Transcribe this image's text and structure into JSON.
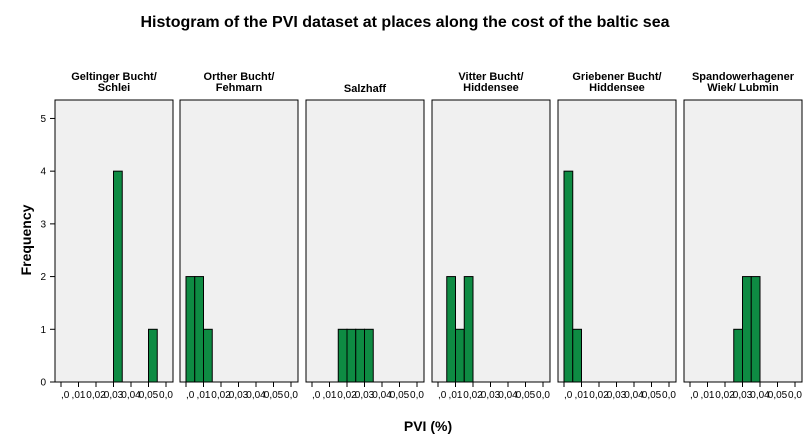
{
  "chart_data": {
    "type": "bar",
    "title": "Histogram of the PVI dataset at places along  the cost of the baltic sea",
    "xlabel": "PVI (%)",
    "ylabel": "Frequency",
    "ylim": [
      0,
      5
    ],
    "y_ticks": [
      "0",
      "1",
      "2",
      "3",
      "4",
      "5"
    ],
    "x_ticks": [
      ",0",
      ",01",
      "0,02",
      "0,03",
      "0,04",
      "0,05",
      "0,0"
    ],
    "bin_edges": [
      0,
      0.005,
      0.01,
      0.015,
      0.02,
      0.025,
      0.03,
      0.035,
      0.04,
      0.045,
      0.05,
      0.055,
      0.06
    ],
    "panels": [
      {
        "label_lines": [
          "Geltinger Bucht/",
          "Schlei"
        ],
        "counts": [
          0,
          0,
          0,
          0,
          0,
          0,
          4,
          0,
          0,
          0,
          1,
          0
        ]
      },
      {
        "label_lines": [
          "Orther Bucht/",
          "Fehmarn"
        ],
        "counts": [
          2,
          2,
          1,
          0,
          0,
          0,
          0,
          0,
          0,
          0,
          0,
          0
        ]
      },
      {
        "label_lines": [
          "Salzhaff"
        ],
        "counts": [
          0,
          0,
          0,
          1,
          1,
          1,
          1,
          0,
          0,
          0,
          0,
          0
        ]
      },
      {
        "label_lines": [
          "Vitter Bucht/",
          "Hiddensee"
        ],
        "counts": [
          0,
          2,
          1,
          2,
          0,
          0,
          0,
          0,
          0,
          0,
          0,
          0
        ]
      },
      {
        "label_lines": [
          "Griebener Bucht/",
          "Hiddensee"
        ],
        "counts": [
          4,
          1,
          0,
          0,
          0,
          0,
          0,
          0,
          0,
          0,
          0,
          0
        ]
      },
      {
        "label_lines": [
          "Spandowerhagener",
          "Wiek/ Lubmin"
        ],
        "counts": [
          0,
          0,
          0,
          0,
          0,
          1,
          2,
          2,
          0,
          0,
          0,
          0
        ]
      }
    ],
    "bar_color": "#0e8b43",
    "panel_background": "#f0f0f0",
    "grid": false,
    "legend": "none"
  }
}
